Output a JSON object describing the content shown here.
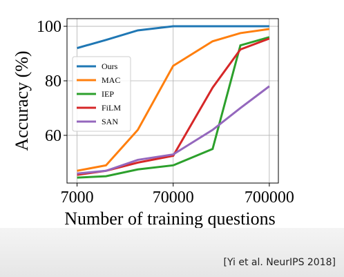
{
  "chart_data": {
    "type": "line",
    "x_label": "Number of training questions",
    "y_label": "Accuracy (%)",
    "x": [
      7000,
      14000,
      30000,
      70000,
      180000,
      350000,
      700000
    ],
    "xlim": [
      5500,
      870000
    ],
    "xticks": [
      7000,
      70000,
      700000
    ],
    "xscale": "log",
    "ylim": [
      42.5,
      102.8
    ],
    "yticks": [
      60,
      80,
      100
    ],
    "grid": true,
    "legend": "upper left",
    "series": [
      {
        "name": "Ours",
        "color": "#1f77b4",
        "values": [
          92,
          95,
          98.5,
          100,
          100,
          100,
          100
        ]
      },
      {
        "name": "MAC",
        "color": "#ff7f0e",
        "values": [
          47,
          49,
          62,
          85.5,
          94.5,
          97.5,
          99
        ]
      },
      {
        "name": "IEP",
        "color": "#2ca02c",
        "values": [
          44.5,
          45,
          47.5,
          49,
          55,
          93,
          96
        ]
      },
      {
        "name": "FiLM",
        "color": "#d62728",
        "values": [
          45.5,
          47,
          50,
          52.5,
          77.5,
          91.5,
          95.5
        ]
      },
      {
        "name": "SAN",
        "color": "#9467bd",
        "values": [
          46,
          47,
          51,
          53,
          62,
          70,
          78
        ]
      }
    ]
  },
  "citation": "[Yi et al. NeurIPS 2018]"
}
